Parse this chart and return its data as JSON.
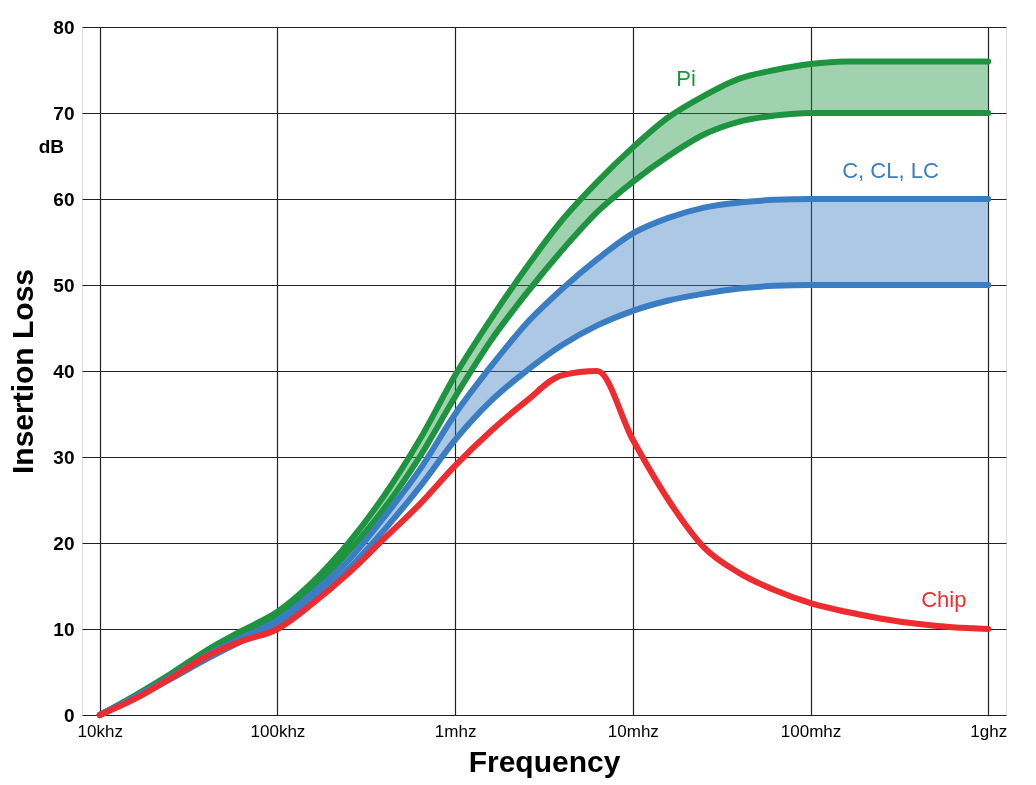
{
  "chart_data": {
    "type": "line",
    "xlabel": "Frequency",
    "ylabel": "Insertion Loss",
    "annotations": [
      "dB"
    ],
    "categories": [
      "10khz",
      null,
      null,
      null,
      null,
      "100khz",
      null,
      null,
      null,
      null,
      "1mhz",
      null,
      null,
      null,
      null,
      "10mhz",
      null,
      null,
      null,
      null,
      "100mhz",
      null,
      null,
      null,
      null,
      "1ghz"
    ],
    "ylim": [
      0,
      80
    ],
    "yticks": [
      0,
      10,
      20,
      30,
      40,
      50,
      60,
      70,
      80
    ],
    "grid": true,
    "legend": false,
    "series": [
      {
        "name": "Pi",
        "color": "#1e9440",
        "values": [
          0,
          2.3,
          4.8,
          7.5,
          9.8,
          12,
          15.5,
          20,
          25.5,
          32,
          39.5,
          46,
          52,
          57.5,
          62,
          66,
          69.5,
          72,
          74,
          75,
          75.7,
          76,
          76,
          76,
          76,
          76
        ],
        "lower": [
          0,
          2.2,
          4.6,
          7.2,
          9.4,
          11.5,
          14.8,
          19,
          24,
          30,
          37,
          43.5,
          49,
          54,
          58.5,
          62,
          65,
          67.5,
          69,
          69.7,
          70,
          70,
          70,
          70,
          70,
          70
        ],
        "upper": [
          0,
          2.3,
          4.8,
          7.5,
          9.8,
          12,
          15.5,
          20,
          25.5,
          32,
          39.5,
          46,
          52,
          57.5,
          62,
          66,
          69.5,
          72,
          74,
          75,
          75.7,
          76,
          76,
          76,
          76,
          76
        ]
      },
      {
        "color": "#1e9440",
        "values": [
          0,
          2.2,
          4.6,
          7.2,
          9.4,
          11.5,
          14.8,
          19,
          24,
          30,
          37,
          43.5,
          49,
          54,
          58.5,
          62,
          65,
          67.5,
          69,
          69.7,
          70,
          70,
          70,
          70,
          70,
          70
        ]
      },
      {
        "name": "C, CL, LC",
        "color": "#3a7dc2",
        "values": [
          0,
          2.1,
          4.4,
          6.9,
          9,
          11,
          14.2,
          18,
          23,
          28.5,
          35,
          40.5,
          45.5,
          49.5,
          53,
          56,
          57.8,
          59,
          59.6,
          59.9,
          60,
          60,
          60,
          60,
          60,
          60
        ],
        "lower": [
          0,
          2,
          4.2,
          6.5,
          8.6,
          10.5,
          13.5,
          17,
          21.5,
          26.5,
          32,
          36.5,
          40,
          43,
          45.3,
          47,
          48.2,
          49,
          49.6,
          49.9,
          50,
          50,
          50,
          50,
          50,
          50
        ],
        "upper": [
          0,
          2.1,
          4.4,
          6.9,
          9,
          11,
          14.2,
          18,
          23,
          28.5,
          35,
          40.5,
          45.5,
          49.5,
          53,
          56,
          57.8,
          59,
          59.6,
          59.9,
          60,
          60,
          60,
          60,
          60,
          60
        ]
      },
      {
        "color": "#3a7dc2",
        "values": [
          0,
          2,
          4.2,
          6.5,
          8.6,
          10.5,
          13.5,
          17,
          21.5,
          26.5,
          32,
          36.5,
          40,
          43,
          45.3,
          47,
          48.2,
          49,
          49.6,
          49.9,
          50,
          50,
          50,
          50,
          50,
          50
        ]
      },
      {
        "name": "Chip",
        "color": "#ee2b2e",
        "values": [
          0,
          1.9,
          4.3,
          6.8,
          8.6,
          10,
          13,
          16.5,
          20.5,
          24.5,
          29,
          33,
          36.5,
          39.5,
          40,
          32,
          25,
          19.5,
          16.5,
          14.5,
          13,
          12,
          11.2,
          10.6,
          10.2,
          10
        ]
      }
    ]
  }
}
